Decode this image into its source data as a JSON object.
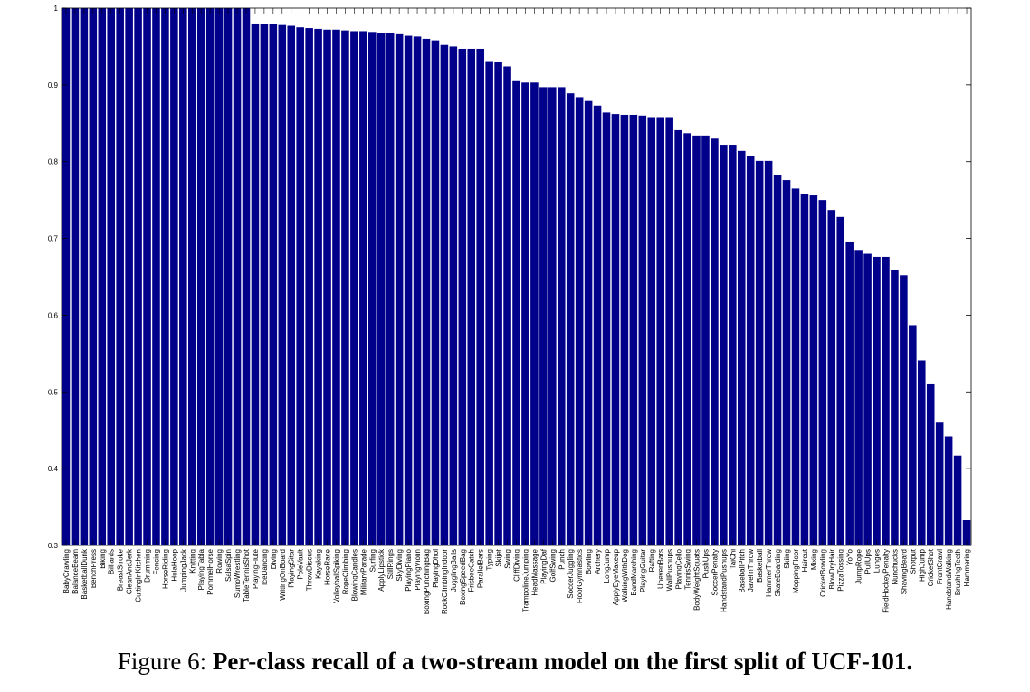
{
  "caption": {
    "prefix": "Figure 6: ",
    "text": "Per-class recall of a two-stream model on the first split of UCF-101."
  },
  "colors": {
    "bar": "#00008b",
    "axis": "#000000"
  },
  "chart_data": {
    "type": "bar",
    "title": "",
    "xlabel": "",
    "ylabel": "",
    "ylim": [
      0.3,
      1
    ],
    "yticks": [
      0.3,
      0.4,
      0.5,
      0.6,
      0.7,
      0.8,
      0.9,
      1
    ],
    "ytick_labels": [
      "0.3",
      "0.4",
      "0.5",
      "0.6",
      "0.7",
      "0.8",
      "0.9",
      "1"
    ],
    "grid": false,
    "categories": [
      "BabyCrawling",
      "BalanceBeam",
      "BasketballDunk",
      "BenchPress",
      "Biking",
      "Billiards",
      "BreastStroke",
      "CleanAndJerk",
      "CuttingInKitchen",
      "Drumming",
      "Fencing",
      "HorseRiding",
      "HulaHoop",
      "JumpingJack",
      "Knitting",
      "PlayingTabla",
      "PommelHorse",
      "Rowing",
      "SalsaSpin",
      "SumoWrestling",
      "TableTennisShot",
      "PlayingFlute",
      "IceDancing",
      "Diving",
      "WritingOnBoard",
      "PlayingSitar",
      "PoleVault",
      "ThrowDiscus",
      "Kayaking",
      "HorseRace",
      "VolleyballSpiking",
      "RopeClimbing",
      "BlowingCandles",
      "MilitaryParade",
      "Surfing",
      "ApplyLipstick",
      "StillRings",
      "SkyDiving",
      "PlayingPiano",
      "PlayingViolin",
      "BoxingPunchingBag",
      "PlayingDhol",
      "RockClimbingIndoor",
      "JugglingBalls",
      "BoxingSpeedBag",
      "FrisbeeCatch",
      "ParallelBars",
      "Typing",
      "Skijet",
      "Swing",
      "CliffDiving",
      "TrampolineJumping",
      "HeadMassage",
      "PlayingDaf",
      "GolfSwing",
      "Punch",
      "SoccerJuggling",
      "FloorGymnastics",
      "Bowling",
      "Archery",
      "LongJump",
      "ApplyEyeMakeup",
      "WalkingWithDog",
      "BandMarching",
      "PlayingGuitar",
      "Rafting",
      "UnevenBars",
      "WallPushups",
      "PlayingCello",
      "TennisSwing",
      "BodyWeightSquats",
      "PushUps",
      "SoccerPenalty",
      "HandstandPushups",
      "TaiChi",
      "BaseballPitch",
      "JavelinThrow",
      "Basketball",
      "HammerThrow",
      "SkateBoarding",
      "Skiing",
      "MoppingFloor",
      "Haircut",
      "Mixing",
      "CricketBowling",
      "BlowDryHair",
      "PizzaTossing",
      "YoYo",
      "JumpRope",
      "PullUps",
      "Lunges",
      "FieldHockeyPenalty",
      "Nunchucks",
      "ShavingBeard",
      "Shotput",
      "HighJump",
      "CricketShot",
      "FrontCrawl",
      "HandstandWalking",
      "BrushingTeeth",
      "Hammering"
    ],
    "values": [
      1,
      1,
      1,
      1,
      1,
      1,
      1,
      1,
      1,
      1,
      1,
      1,
      1,
      1,
      1,
      1,
      1,
      1,
      1,
      1,
      1,
      0.98,
      0.979,
      0.979,
      0.978,
      0.977,
      0.975,
      0.974,
      0.973,
      0.972,
      0.972,
      0.971,
      0.97,
      0.97,
      0.969,
      0.968,
      0.968,
      0.966,
      0.964,
      0.963,
      0.96,
      0.958,
      0.952,
      0.95,
      0.947,
      0.947,
      0.947,
      0.931,
      0.93,
      0.924,
      0.906,
      0.903,
      0.903,
      0.897,
      0.897,
      0.897,
      0.889,
      0.884,
      0.879,
      0.873,
      0.864,
      0.862,
      0.861,
      0.861,
      0.86,
      0.858,
      0.858,
      0.858,
      0.841,
      0.837,
      0.834,
      0.834,
      0.83,
      0.822,
      0.822,
      0.814,
      0.807,
      0.801,
      0.801,
      0.782,
      0.776,
      0.765,
      0.758,
      0.756,
      0.75,
      0.737,
      0.728,
      0.696,
      0.685,
      0.68,
      0.676,
      0.676,
      0.659,
      0.652,
      0.587,
      0.541,
      0.511,
      0.46,
      0.442,
      0.417,
      0.333
    ]
  }
}
